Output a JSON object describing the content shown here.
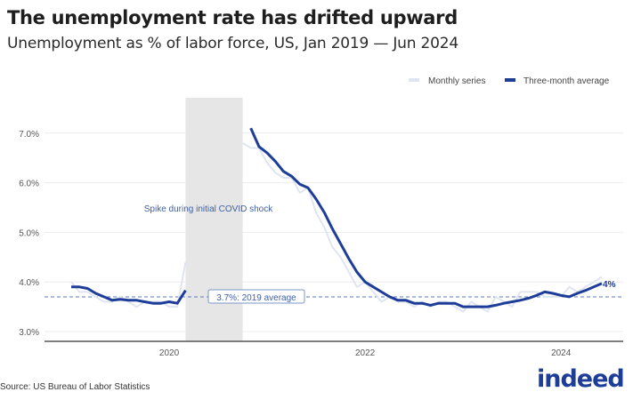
{
  "chart_data": {
    "type": "line",
    "title": "The unemployment rate has drifted upward",
    "subtitle": "Unemployment as % of labor force, US, Jan 2019 — Jun 2024",
    "source": "Source: US Bureau of Labor Statistics",
    "logo": "indeed",
    "xlabel": "",
    "ylabel": "",
    "x_ticks": [
      "2020",
      "2022",
      "2024"
    ],
    "y_ticks": [
      "3.0%",
      "4.0%",
      "5.0%",
      "6.0%",
      "7.0%"
    ],
    "ylim": [
      2.8,
      7.5
    ],
    "xlim": [
      "2019-01",
      "2024-06"
    ],
    "grid": true,
    "legend_position": "top-right",
    "colors": {
      "monthly": "#dfe5f0",
      "average": "#1d3d99",
      "shade": "#e6e6e6",
      "reference": "#5a7bbf"
    },
    "shaded_region": {
      "start": "2020-03",
      "end": "2020-10",
      "label": "Spike during initial COVID shock"
    },
    "reference_line": {
      "value": 3.7,
      "label": "3.7%: 2019 average"
    },
    "end_label": "4%",
    "series": [
      {
        "name": "Monthly series",
        "start": "2019-01",
        "values": [
          4.0,
          3.8,
          3.8,
          3.7,
          3.6,
          3.6,
          3.7,
          3.6,
          3.5,
          3.6,
          3.6,
          3.6,
          3.5,
          3.5,
          4.4,
          null,
          null,
          null,
          null,
          null,
          null,
          6.8,
          6.7,
          6.7,
          6.4,
          6.2,
          6.1,
          6.1,
          5.8,
          5.9,
          5.4,
          5.1,
          4.7,
          4.5,
          4.2,
          3.9,
          4.0,
          3.8,
          3.6,
          3.7,
          3.6,
          3.6,
          3.5,
          3.6,
          3.5,
          3.6,
          3.6,
          3.5,
          3.4,
          3.6,
          3.5,
          3.4,
          3.7,
          3.6,
          3.5,
          3.8,
          3.8,
          3.8,
          3.7,
          3.7,
          3.7,
          3.9,
          3.8,
          3.9,
          4.0,
          4.1
        ]
      },
      {
        "name": "Three-month average",
        "start": "2019-01",
        "values": [
          3.9,
          3.9,
          3.87,
          3.77,
          3.7,
          3.63,
          3.65,
          3.63,
          3.63,
          3.6,
          3.57,
          3.57,
          3.6,
          3.57,
          3.83,
          null,
          null,
          null,
          null,
          null,
          null,
          null,
          7.1,
          6.73,
          6.6,
          6.43,
          6.23,
          6.13,
          5.97,
          5.9,
          5.67,
          5.4,
          5.07,
          4.77,
          4.47,
          4.2,
          4.0,
          3.9,
          3.8,
          3.7,
          3.63,
          3.63,
          3.57,
          3.57,
          3.53,
          3.57,
          3.57,
          3.57,
          3.5,
          3.5,
          3.5,
          3.5,
          3.53,
          3.57,
          3.6,
          3.63,
          3.67,
          3.73,
          3.8,
          3.77,
          3.73,
          3.7,
          3.77,
          3.83,
          3.9,
          3.97
        ]
      }
    ]
  }
}
